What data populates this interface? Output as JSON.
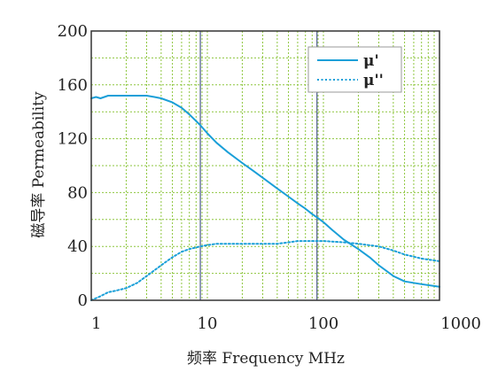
{
  "chart_data": {
    "type": "line",
    "title": "",
    "xlabel": "频率 Frequency MHz",
    "ylabel": "磁导率 Permeability",
    "x_scale": "log",
    "xlim": [
      1,
      1000
    ],
    "ylim": [
      0,
      200
    ],
    "x_ticks": [
      1,
      10,
      100,
      1000
    ],
    "x_tick_labels": [
      "1",
      "10",
      "100",
      "1000"
    ],
    "y_ticks": [
      0,
      40,
      80,
      120,
      160,
      200
    ],
    "y_tick_labels": [
      "0",
      "40",
      "80",
      "120",
      "160",
      "200"
    ],
    "grid": true,
    "legend_position": "top-right",
    "reference_lines_x": [
      8.7,
      88
    ],
    "series": [
      {
        "name": "μ'",
        "style": "solid",
        "color": "#1a9fd8",
        "x": [
          1,
          1.1,
          1.2,
          1.4,
          1.7,
          2,
          2.5,
          3,
          3.5,
          4,
          5,
          6,
          7,
          8.7,
          10,
          12,
          15,
          20,
          25,
          30,
          40,
          50,
          60,
          70,
          80,
          90,
          100,
          120,
          150,
          200,
          250,
          300,
          400,
          500,
          700,
          1000
        ],
        "values": [
          150,
          151,
          150,
          152,
          152,
          152,
          152,
          152,
          151,
          150,
          147,
          143,
          138,
          130,
          124,
          117,
          110,
          102,
          96,
          91,
          83,
          77,
          72,
          68,
          64,
          61,
          58,
          52,
          45,
          38,
          32,
          26,
          18,
          14,
          12,
          10
        ]
      },
      {
        "name": "μ''",
        "style": "dotted",
        "color": "#1a9fd8",
        "x": [
          1,
          1.2,
          1.4,
          1.6,
          2,
          2.5,
          3,
          4,
          5,
          6,
          7,
          8.7,
          10,
          12,
          15,
          20,
          30,
          40,
          50,
          60,
          70,
          80,
          100,
          150,
          200,
          300,
          400,
          500,
          700,
          1000
        ],
        "values": [
          0,
          3,
          6,
          7,
          9,
          13,
          18,
          26,
          32,
          36,
          38,
          40,
          41,
          42,
          42,
          42,
          42,
          42,
          43,
          44,
          44,
          44,
          44,
          43,
          42,
          40,
          37,
          34,
          31,
          29
        ]
      }
    ]
  }
}
